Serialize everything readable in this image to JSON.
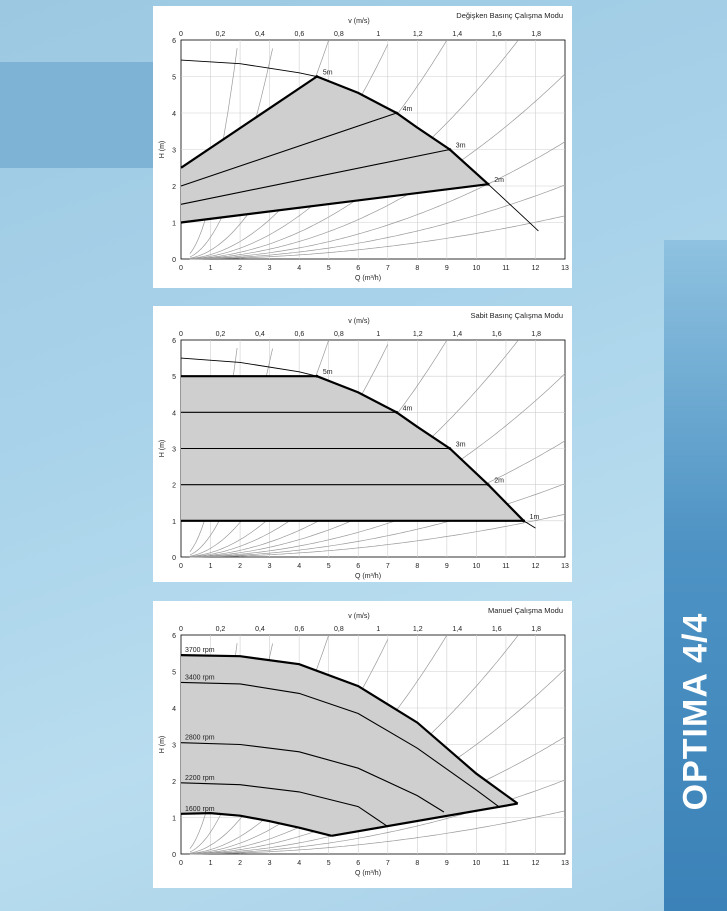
{
  "side_title": "OPTIMA 4/4",
  "colors": {
    "fill": "#cfcfcf",
    "curve": "#000000",
    "system_curve": "#9a9a9a",
    "grid": "#cfcfcf"
  },
  "chart_data": [
    {
      "type": "line",
      "title": "Değişken Basınç Çalışma Modu",
      "xlabel": "Q (m³/h)",
      "ylabel": "H (m)",
      "top_axis_label": "v (m/s)",
      "x_ticks": [
        "0",
        "1",
        "2",
        "3",
        "4",
        "5",
        "6",
        "7",
        "8",
        "9",
        "10",
        "11",
        "12",
        "13"
      ],
      "y_ticks": [
        "0",
        "1",
        "2",
        "3",
        "4",
        "5",
        "6"
      ],
      "top_ticks": [
        "0",
        "0,2",
        "0,4",
        "0,6",
        "0,8",
        "1",
        "1,2",
        "1,4",
        "1,6",
        "1,8"
      ],
      "xlim": [
        0,
        13
      ],
      "ylim": [
        0,
        6
      ],
      "grid": true,
      "max_curve": {
        "x": [
          0,
          2,
          4,
          4.6,
          6,
          7.3,
          8,
          9.1,
          10.4,
          11.4,
          12.1
        ],
        "y": [
          5.45,
          5.35,
          5.1,
          5.0,
          4.55,
          4.0,
          3.6,
          3.0,
          2.05,
          1.3,
          0.77
        ]
      },
      "series": [
        {
          "name": "5m",
          "x": [
            0,
            4.6
          ],
          "y": [
            2.5,
            5.0
          ]
        },
        {
          "name": "4m",
          "x": [
            0,
            7.3
          ],
          "y": [
            2.0,
            4.0
          ]
        },
        {
          "name": "3m",
          "x": [
            0,
            9.1
          ],
          "y": [
            1.5,
            3.0
          ]
        },
        {
          "name": "2m",
          "x": [
            0,
            10.4
          ],
          "y": [
            1.0,
            2.05
          ]
        }
      ]
    },
    {
      "type": "line",
      "title": "Sabit Basınç Çalışma Modu",
      "xlabel": "Q (m³/h)",
      "ylabel": "H (m)",
      "top_axis_label": "v (m/s)",
      "x_ticks": [
        "0",
        "1",
        "2",
        "3",
        "4",
        "5",
        "6",
        "7",
        "8",
        "9",
        "10",
        "11",
        "12",
        "13"
      ],
      "y_ticks": [
        "0",
        "1",
        "2",
        "3",
        "4",
        "5",
        "6"
      ],
      "top_ticks": [
        "0",
        "0,2",
        "0,4",
        "0,6",
        "0,8",
        "1",
        "1,2",
        "1,4",
        "1,6",
        "1,8"
      ],
      "xlim": [
        0,
        13
      ],
      "ylim": [
        0,
        6
      ],
      "grid": true,
      "max_curve": {
        "x": [
          0,
          2,
          4,
          4.6,
          6,
          7.3,
          8,
          9.1,
          10.4,
          11.6,
          12.0
        ],
        "y": [
          5.5,
          5.38,
          5.12,
          5.0,
          4.55,
          4.0,
          3.6,
          3.0,
          2.0,
          1.0,
          0.8
        ]
      },
      "series": [
        {
          "name": "5m",
          "x": [
            0,
            4.6
          ],
          "y": [
            5.0,
            5.0
          ]
        },
        {
          "name": "4m",
          "x": [
            0,
            7.3
          ],
          "y": [
            4.0,
            4.0
          ]
        },
        {
          "name": "3m",
          "x": [
            0,
            9.1
          ],
          "y": [
            3.0,
            3.0
          ]
        },
        {
          "name": "2m",
          "x": [
            0,
            10.4
          ],
          "y": [
            2.0,
            2.0
          ]
        },
        {
          "name": "1m",
          "x": [
            0,
            11.6
          ],
          "y": [
            1.0,
            1.0
          ]
        }
      ]
    },
    {
      "type": "line",
      "title": "Manuel Çalışma Modu",
      "xlabel": "Q (m³/h)",
      "ylabel": "H (m)",
      "top_axis_label": "v (m/s)",
      "x_ticks": [
        "0",
        "1",
        "2",
        "3",
        "4",
        "5",
        "6",
        "7",
        "8",
        "9",
        "10",
        "11",
        "12",
        "13"
      ],
      "y_ticks": [
        "0",
        "1",
        "2",
        "3",
        "4",
        "5",
        "6"
      ],
      "top_ticks": [
        "0",
        "0,2",
        "0,4",
        "0,6",
        "0,8",
        "1",
        "1,2",
        "1,4",
        "1,6",
        "1,8"
      ],
      "xlim": [
        0,
        13
      ],
      "ylim": [
        0,
        6
      ],
      "grid": true,
      "series": [
        {
          "name": "3700 rpm",
          "x": [
            0,
            2,
            4,
            6,
            8,
            10,
            11.4
          ],
          "y": [
            5.45,
            5.42,
            5.2,
            4.6,
            3.6,
            2.2,
            1.38
          ]
        },
        {
          "name": "3400 rpm",
          "x": [
            0,
            2,
            4,
            6,
            8,
            10,
            10.8
          ],
          "y": [
            4.7,
            4.66,
            4.4,
            3.85,
            2.9,
            1.75,
            1.27
          ]
        },
        {
          "name": "2800 rpm",
          "x": [
            0,
            2,
            4,
            6,
            8,
            8.9
          ],
          "y": [
            3.05,
            3.0,
            2.8,
            2.35,
            1.6,
            1.15
          ]
        },
        {
          "name": "2200 rpm",
          "x": [
            0,
            2,
            4,
            6,
            7.0
          ],
          "y": [
            1.95,
            1.9,
            1.7,
            1.3,
            0.75
          ]
        },
        {
          "name": "1600 rpm",
          "x": [
            0,
            1,
            2,
            3,
            4,
            5.1
          ],
          "y": [
            1.1,
            1.12,
            1.05,
            0.9,
            0.72,
            0.5
          ]
        }
      ],
      "min_line": {
        "x": [
          5.1,
          11.4
        ],
        "y": [
          0.5,
          1.38
        ]
      }
    }
  ]
}
